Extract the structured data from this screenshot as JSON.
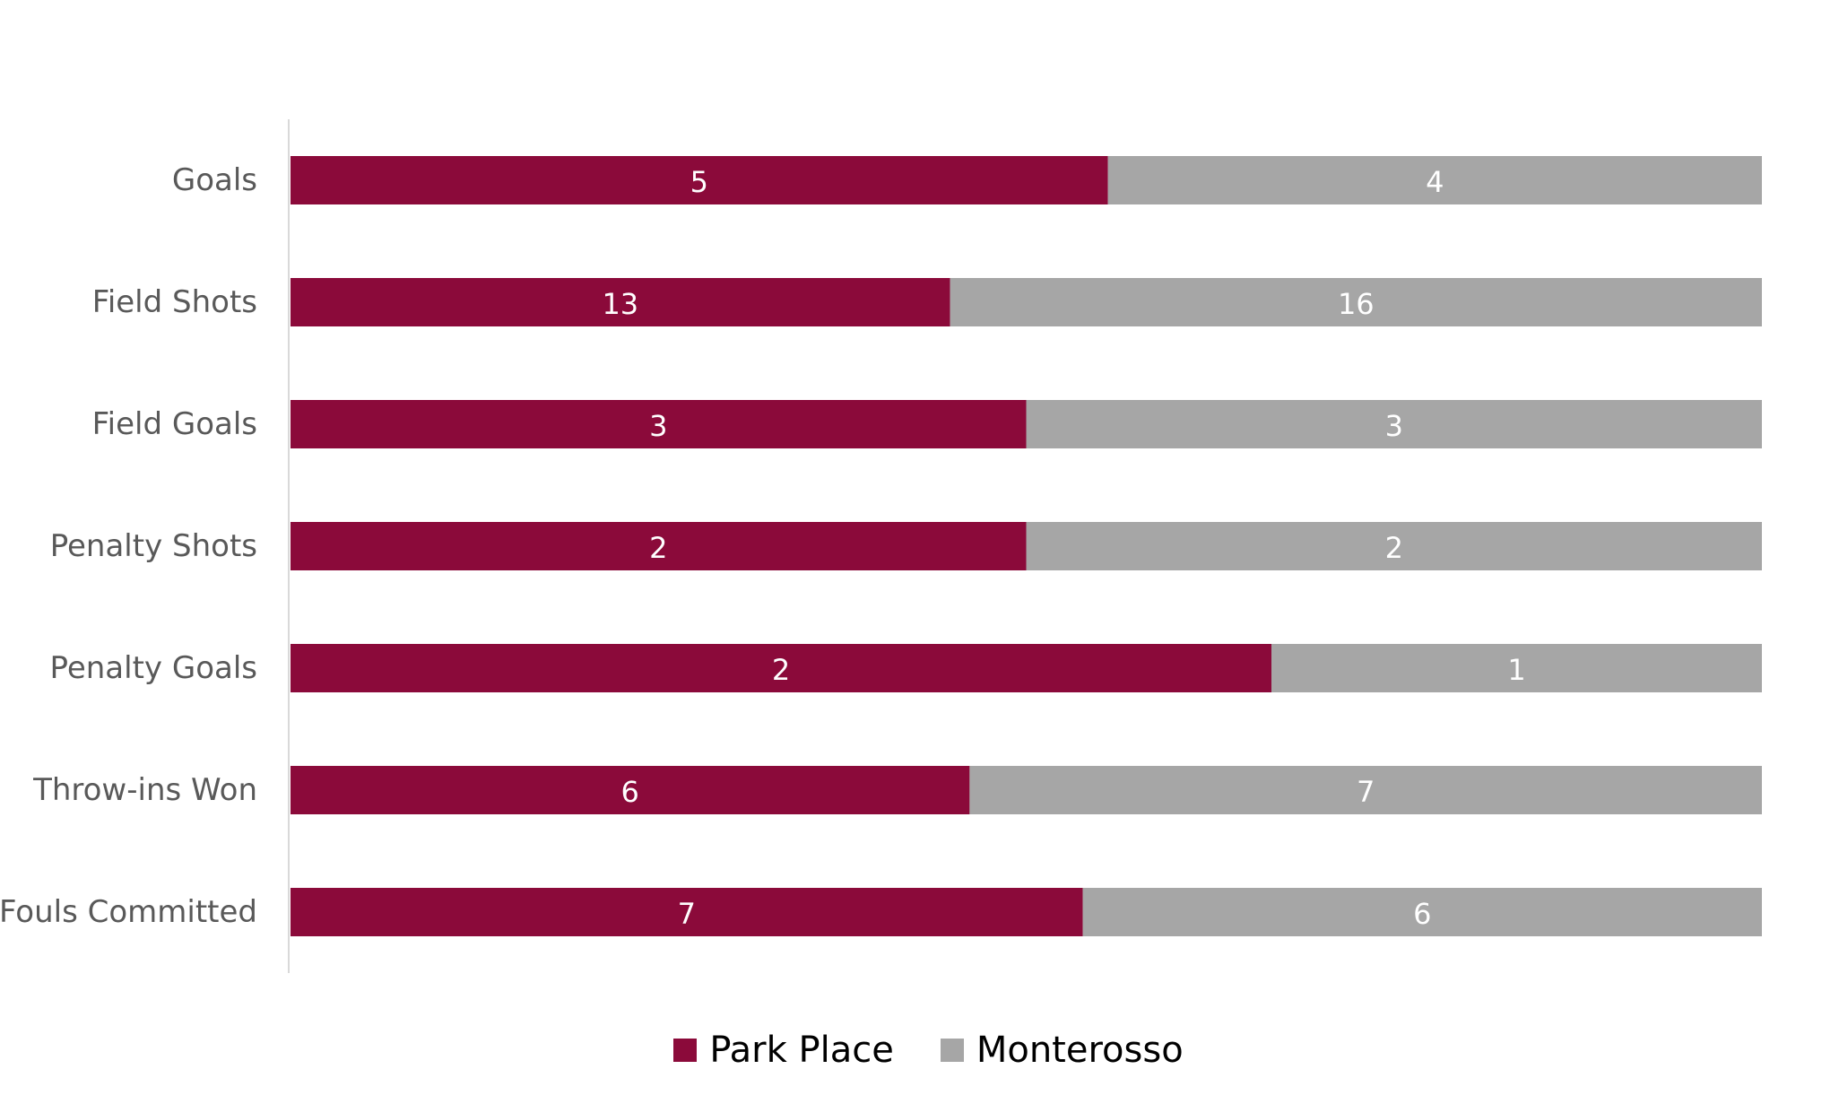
{
  "chart_data": {
    "type": "bar",
    "orientation": "horizontal",
    "stacking": "percent",
    "title": "",
    "xlabel": "",
    "ylabel": "",
    "categories": [
      "Goals",
      "Field Shots",
      "Field Goals",
      "Penalty Shots",
      "Penalty Goals",
      "Throw-ins Won",
      "Fouls Committed"
    ],
    "series": [
      {
        "name": "Park Place",
        "values": [
          5,
          13,
          3,
          2,
          2,
          6,
          7
        ],
        "color": "#8B0A3A"
      },
      {
        "name": "Monterosso",
        "values": [
          4,
          16,
          3,
          2,
          1,
          7,
          6
        ],
        "color": "#A6A6A6"
      }
    ],
    "data_labels": true,
    "legend_position": "bottom",
    "grid": false
  }
}
